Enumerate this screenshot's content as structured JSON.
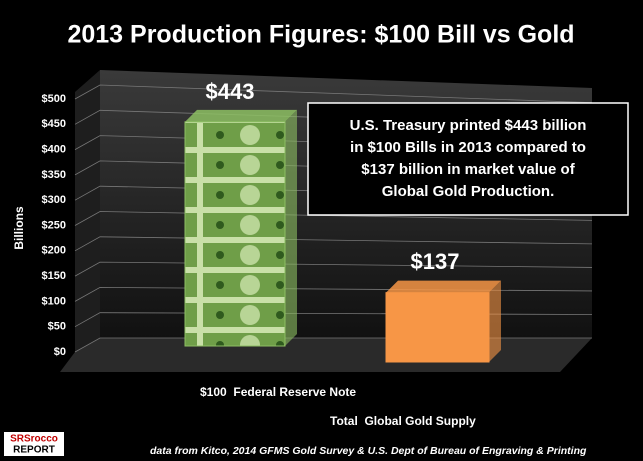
{
  "chart_data": {
    "type": "bar3d",
    "title": "2013 Production Figures:  $100 Bill vs Gold",
    "y_label": "Billions",
    "categories": [
      "$100  Federal Reserve Note",
      "Total  Global Gold Supply"
    ],
    "values": [
      443,
      137
    ],
    "value_labels": [
      "$443",
      "$137"
    ],
    "colors": [
      "#8dbf63",
      "#f79646"
    ],
    "ylim": [
      0,
      500
    ],
    "yticks": [
      {
        "value": 0,
        "label": "$0"
      },
      {
        "value": 50,
        "label": "$50"
      },
      {
        "value": 100,
        "label": "$100"
      },
      {
        "value": 150,
        "label": "$150"
      },
      {
        "value": 200,
        "label": "$200"
      },
      {
        "value": 250,
        "label": "$250"
      },
      {
        "value": 300,
        "label": "$300"
      },
      {
        "value": 350,
        "label": "$350"
      },
      {
        "value": 400,
        "label": "$400"
      },
      {
        "value": 450,
        "label": "$450"
      },
      {
        "value": 500,
        "label": "$500"
      }
    ],
    "grid": true,
    "annotation": [
      "U.S. Treasury printed $443 billion",
      "in $100 Bills in 2013 compared to",
      "$137 billion in market value of",
      "Global Gold Production."
    ],
    "source": "data from  Kitco, 2014 GFMS Gold Survey & U.S. Dept of Bureau of Engraving & Printing",
    "logo": [
      "SRSrocco",
      "REPORT"
    ]
  }
}
